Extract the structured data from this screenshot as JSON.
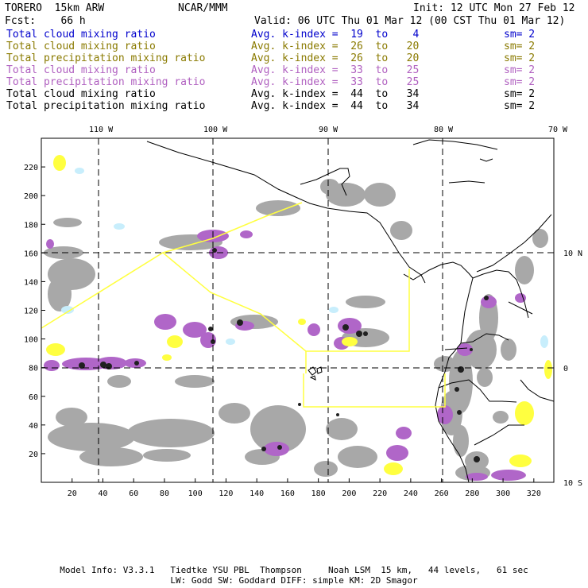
{
  "header": {
    "title": "TORERO  15km ARW",
    "center": "NCAR/MMM",
    "init": "Init: 12 UTC Mon 27 Feb 12",
    "fcst": "Fcst:    66 h",
    "valid": "Valid: 06 UTC Thu 01 Mar 12 (00 CST Thu 01 Mar 12)"
  },
  "legend": [
    {
      "field": "Total cloud mixing ratio",
      "avg": "Avg. k-index =  19  to    4",
      "sm": "sm= 2",
      "color": "#0000cc"
    },
    {
      "field": "Total cloud mixing ratio",
      "avg": "Avg. k-index =  26  to   20",
      "sm": "sm= 2",
      "color": "#8a7a00"
    },
    {
      "field": "Total precipitation mixing ratio",
      "avg": "Avg. k-index =  26  to   20",
      "sm": "sm= 2",
      "color": "#8a7a00"
    },
    {
      "field": "Total cloud mixing ratio",
      "avg": "Avg. k-index =  33  to   25",
      "sm": "sm= 2",
      "color": "#b060c0"
    },
    {
      "field": "Total precipitation mixing ratio",
      "avg": "Avg. k-index =  33  to   25",
      "sm": "sm= 2",
      "color": "#b060c0"
    },
    {
      "field": "Total cloud mixing ratio",
      "avg": "Avg. k-index =  44  to   34",
      "sm": "sm= 2",
      "color": "#000000"
    },
    {
      "field": "Total precipitation mixing ratio",
      "avg": "Avg. k-index =  44  to   34",
      "sm": "sm= 2",
      "color": "#000000"
    }
  ],
  "map": {
    "top_longitudes": [
      "110 W",
      "100 W",
      "90 W",
      "80 W",
      "70 W"
    ],
    "right_latitudes": [
      "10 N",
      "0",
      "10 S"
    ],
    "left_ticks": [
      "220",
      "200",
      "180",
      "160",
      "140",
      "120",
      "100",
      "80",
      "60",
      "40",
      "20"
    ],
    "bottom_ticks": [
      "20",
      "40",
      "60",
      "80",
      "100",
      "120",
      "140",
      "160",
      "180",
      "200",
      "220",
      "240",
      "260",
      "280",
      "300",
      "320"
    ],
    "colors": {
      "grey_cloud": "#a8a8a8",
      "dark_core": "#202020",
      "purple": "#b066c8",
      "yellow": "#ffff40",
      "light_blue": "#c8eefc",
      "coast": "#000000",
      "domain_box": "#ffff40",
      "grid": "#000000"
    }
  },
  "footer": {
    "line1": "Model Info: V3.3.1   Tiedtke YSU PBL  Thompson     Noah LSM  15 km,   44 levels,   61 sec",
    "line2": "LW: Godd SW: Goddard DIFF: simple KM: 2D Smagor"
  }
}
